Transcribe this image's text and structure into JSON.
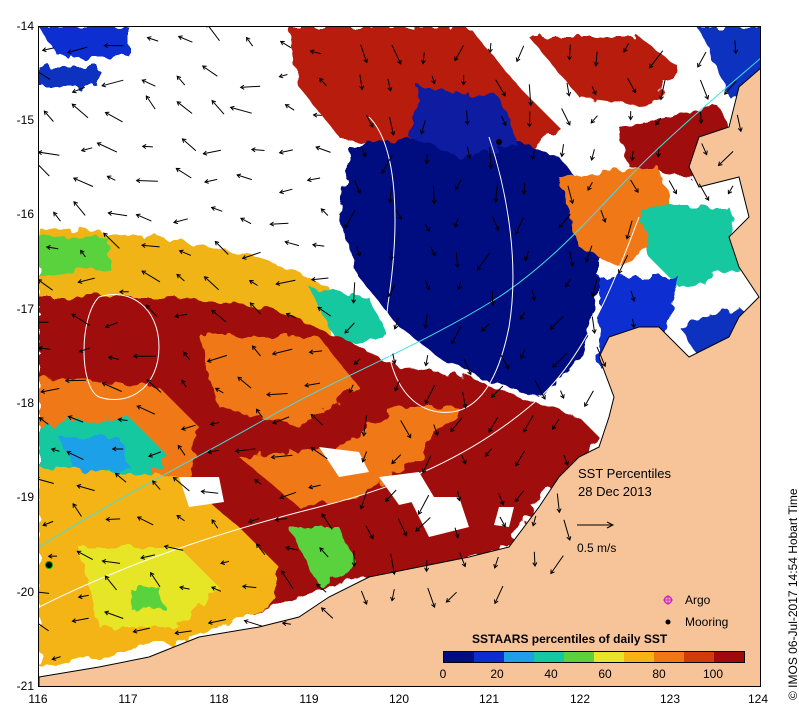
{
  "map": {
    "title": "SST Percentiles",
    "date": "28 Dec 2013",
    "scale_label": "0.5 m/s",
    "x_ticks": [
      "116",
      "117",
      "118",
      "119",
      "120",
      "121",
      "122",
      "123",
      "124"
    ],
    "y_ticks": [
      "-14",
      "-15",
      "-16",
      "-17",
      "-18",
      "-19",
      "-20",
      "-21"
    ],
    "lon_range": [
      116,
      124
    ],
    "lat_range": [
      -21,
      -14
    ],
    "markers": [
      {
        "label": "Argo",
        "color": "#cc22cc",
        "symbol": "star"
      },
      {
        "label": "Mooring",
        "color": "#000000",
        "symbol": "dot"
      }
    ],
    "colorbar": {
      "title": "SSTAARS percentiles of daily SST",
      "ticks": [
        "0",
        "20",
        "40",
        "60",
        "80",
        "100"
      ],
      "colors": [
        "#000c80",
        "#0a2ed0",
        "#1ea0e8",
        "#14c8a0",
        "#5ad23c",
        "#e6e628",
        "#f5b414",
        "#f07814",
        "#d23c0a",
        "#a00a0a"
      ]
    },
    "credit": "© IMOS 06-Jul-2017 14:54 Hobart Time",
    "land_color": "#f7c49a"
  }
}
